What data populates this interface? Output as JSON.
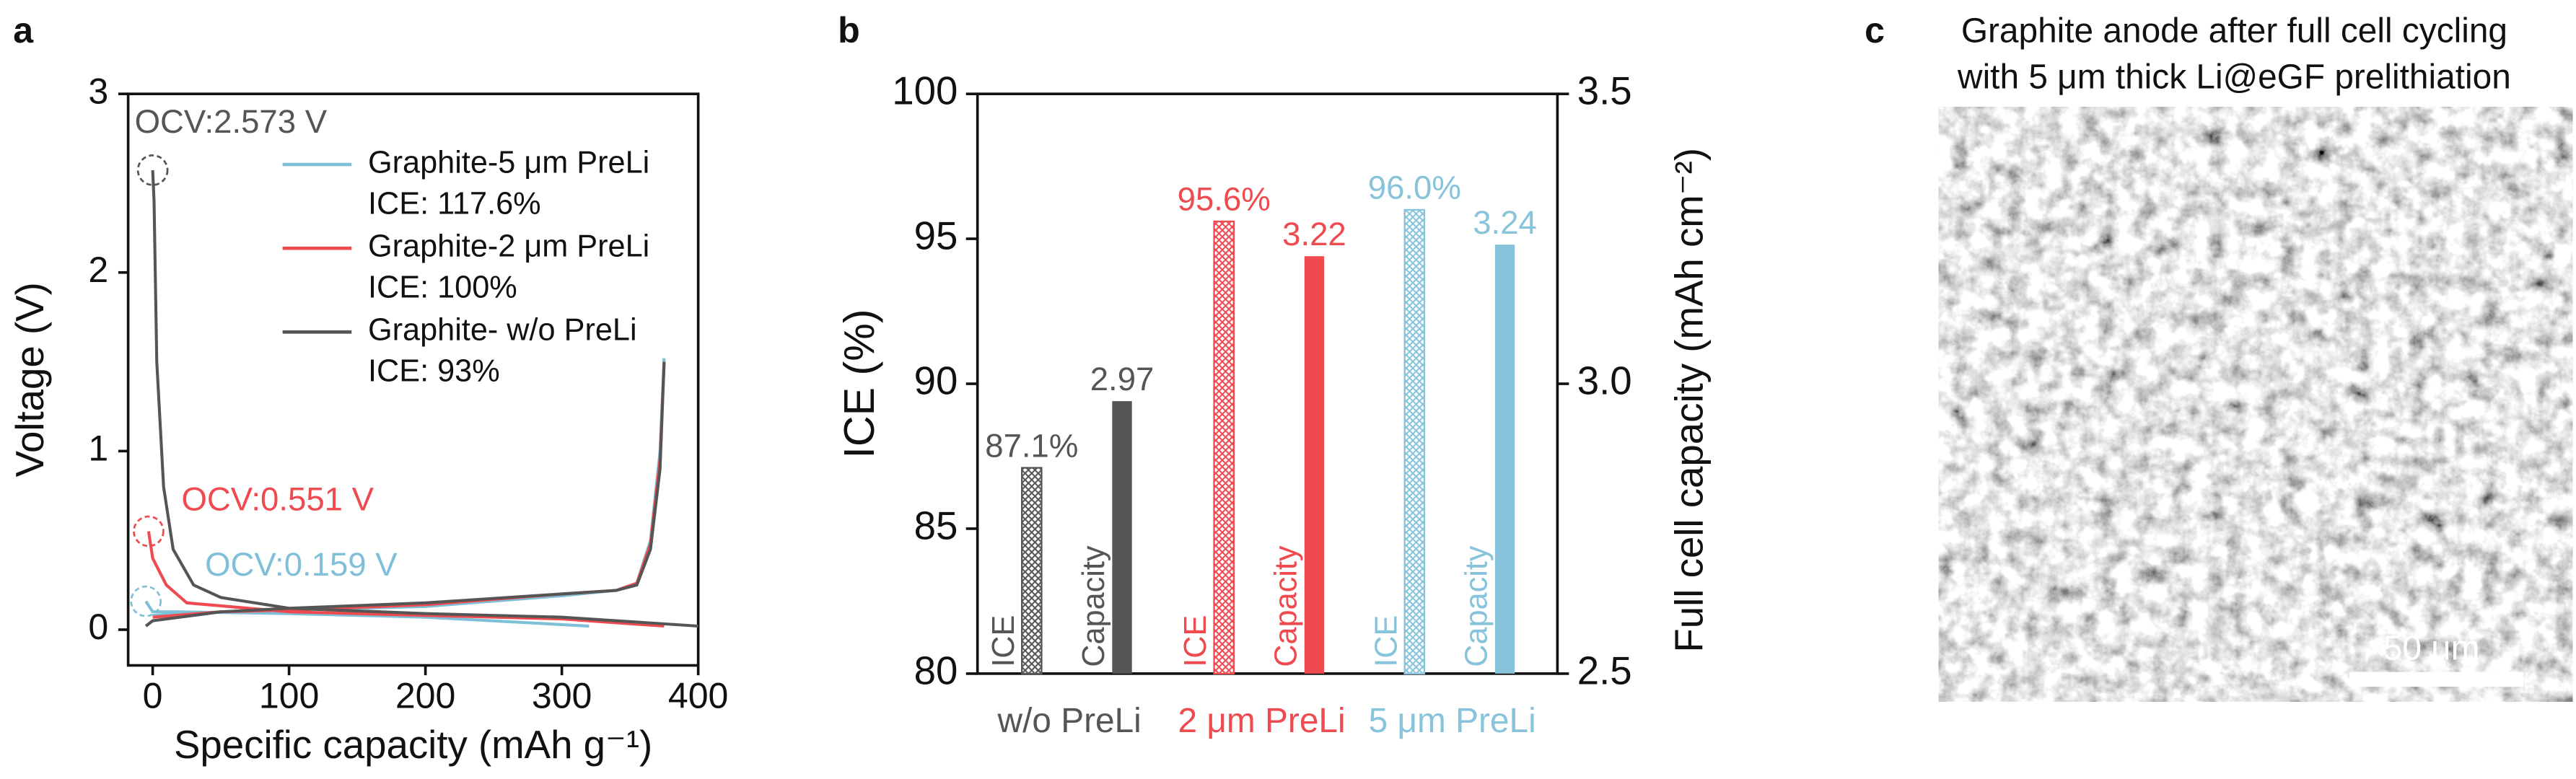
{
  "chart_data": [
    {
      "type": "line",
      "panel_label": "a",
      "xlabel": "Specific capacity (mAh g⁻¹)",
      "ylabel": "Voltage (V)",
      "xlim": [
        -18,
        400
      ],
      "ylim": [
        -0.2,
        3
      ],
      "xticks": [
        0,
        100,
        200,
        300,
        400
      ],
      "yticks": [
        0,
        1,
        2,
        3
      ],
      "series": [
        {
          "name": "Graphite-5 μm PreLi",
          "legend_note": "ICE: 117.6%",
          "ocv_label": "OCV:0.159 V",
          "color": "#7fbfd8",
          "x": [
            -5,
            0,
            20,
            100,
            200,
            320,
            null,
            0,
            50,
            100,
            200,
            300,
            340,
            355,
            365,
            372,
            375
          ],
          "values": [
            0.159,
            0.1,
            0.1,
            0.09,
            0.07,
            0.02,
            null,
            0.08,
            0.1,
            0.11,
            0.13,
            0.19,
            0.22,
            0.26,
            0.5,
            1.0,
            1.52
          ]
        },
        {
          "name": "Graphite-2 μm PreLi",
          "legend_note": "ICE: 100%",
          "ocv_label": "OCV:0.551 V",
          "color": "#ef4a4f",
          "x": [
            -3,
            0,
            10,
            25,
            100,
            200,
            300,
            375,
            null,
            0,
            50,
            100,
            200,
            300,
            340,
            355,
            365,
            372,
            375
          ],
          "values": [
            0.551,
            0.4,
            0.25,
            0.15,
            0.1,
            0.08,
            0.06,
            0.02,
            null,
            0.07,
            0.1,
            0.11,
            0.14,
            0.2,
            0.22,
            0.26,
            0.48,
            0.95,
            1.5
          ]
        },
        {
          "name": "Graphite-  w/o PreLi",
          "legend_note": "ICE: 93%",
          "ocv_label": "OCV:2.573 V",
          "color": "#555555",
          "x": [
            0,
            1,
            3,
            8,
            15,
            30,
            50,
            100,
            200,
            300,
            400,
            null,
            -5,
            0,
            50,
            100,
            200,
            300,
            340,
            355,
            365,
            372,
            375
          ],
          "values": [
            2.573,
            2.4,
            1.5,
            0.8,
            0.45,
            0.25,
            0.18,
            0.12,
            0.09,
            0.07,
            0.02,
            null,
            0.02,
            0.05,
            0.1,
            0.12,
            0.15,
            0.2,
            0.22,
            0.25,
            0.45,
            0.9,
            1.5
          ]
        }
      ]
    },
    {
      "type": "bar",
      "panel_label": "b",
      "ylabel": "ICE (%)",
      "y2label": "Full cell capacity (mAh cm⁻²)",
      "categories": [
        "w/o PreLi",
        "2 μm PreLi",
        "5 μm PreLi"
      ],
      "category_colors": [
        "#555555",
        "#ef4a4f",
        "#87c3da"
      ],
      "ylim": [
        80,
        100
      ],
      "yticks": [
        80,
        85,
        90,
        95,
        100
      ],
      "y2lim": [
        2.5,
        3.5
      ],
      "y2ticks": [
        2.5,
        {
          "value": 3,
          "label": "3.0"
        },
        3.5
      ],
      "series": [
        {
          "name": "ICE",
          "pattern": "crosshatch",
          "values": [
            87.1,
            95.6,
            96.0
          ],
          "value_labels": [
            "87.1%",
            "95.6%",
            "96.0%"
          ]
        },
        {
          "name": "Capacity",
          "axis": "y2",
          "values": [
            2.97,
            3.22,
            3.24
          ]
        }
      ]
    }
  ],
  "panel_c": {
    "panel_label": "c",
    "title_lines": [
      "Graphite anode after full cell cycling",
      "with 5 μm thick Li@eGF prelithiation"
    ],
    "scale_bar": "50 μm"
  }
}
